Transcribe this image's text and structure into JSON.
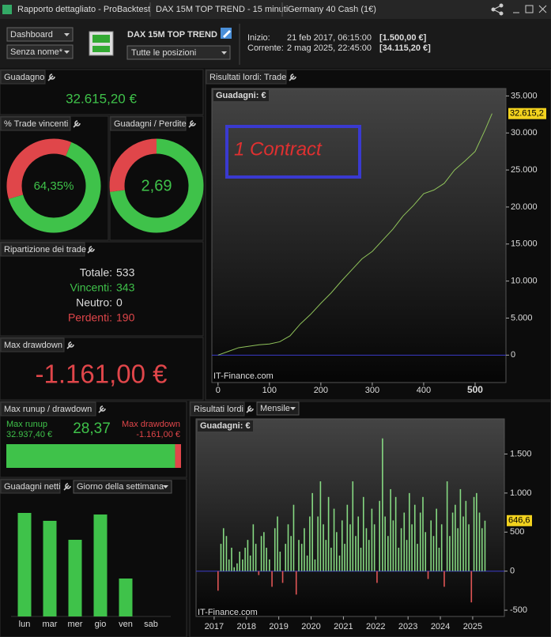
{
  "window": {
    "title": "Rapporto dettagliato - ProBacktest",
    "tabs": [
      "DAX 15M TOP TREND - 15 minuti",
      "Germany 40 Cash (1€)"
    ]
  },
  "toolbar": {
    "view": "Dashboard",
    "name": "Senza nome*",
    "strategy": "DAX 15M TOP TREND",
    "positions": "Tutte le posizioni",
    "start_label": "Inizio:",
    "start_date": "21 feb 2017, 06:15:00",
    "start_capital": "[1.500,00 €]",
    "current_label": "Corrente:",
    "current_date": "2 mag 2025, 22:45:00",
    "current_capital": "[34.115,20 €]"
  },
  "gain": {
    "title": "Guadagno",
    "value": "32.615,20 €"
  },
  "win_rate": {
    "title": "% Trade vincenti",
    "value": 64.35,
    "value_label": "64,35%"
  },
  "gain_loss": {
    "title": "Guadagni / Perdite",
    "value": 2.69,
    "value_label": "2,69"
  },
  "breakdown": {
    "title": "Ripartizione dei trade",
    "rows": [
      [
        "Totale:",
        533
      ],
      [
        "Vincenti:",
        343
      ],
      [
        "Neutro:",
        0
      ],
      [
        "Perdenti:",
        190
      ]
    ]
  },
  "max_drawdown": {
    "title": "Max drawdown",
    "value": "-1.161,00 €"
  },
  "runup": {
    "title": "Max runup / drawdown",
    "runup_label": "Max runup",
    "runup": 32937.4,
    "runup_value_label": "32.937,40 €",
    "ratio": 28.37,
    "ratio_label": "28,37",
    "drawdown_label": "Max drawdown",
    "drawdown": -1161,
    "drawdown_value_label": "-1.161,00 €"
  },
  "chart_data": [
    {
      "type": "line",
      "panel_title": "Risultati lordi: Trade",
      "title": "Guadagni: €",
      "annotation": "1 Contract",
      "watermark": "IT-Finance.com",
      "x": [
        0,
        20,
        40,
        60,
        80,
        100,
        120,
        140,
        160,
        180,
        200,
        220,
        240,
        260,
        280,
        300,
        320,
        340,
        360,
        380,
        400,
        420,
        440,
        460,
        480,
        500,
        520,
        533
      ],
      "values": [
        0,
        500,
        1000,
        1200,
        1400,
        1500,
        1800,
        2600,
        4200,
        5500,
        7000,
        8400,
        10000,
        11500,
        13000,
        14000,
        15500,
        17000,
        18800,
        20200,
        21800,
        22300,
        23200,
        25000,
        26200,
        27500,
        30500,
        32615.2
      ],
      "last_value_label": "32.615,2",
      "color": "#8fc25a",
      "xlim": [
        -12,
        560
      ],
      "ylim": [
        -3700,
        36000
      ],
      "xticks": [
        0,
        100,
        200,
        300,
        400,
        500
      ],
      "yticks": [
        0,
        {
          "value": 5000,
          "label": "5.000"
        },
        {
          "value": 10000,
          "label": "10.000"
        },
        {
          "value": 15000,
          "label": "15.000"
        },
        {
          "value": 20000,
          "label": "20.000"
        },
        {
          "value": 25000,
          "label": "25.000"
        },
        {
          "value": 30000,
          "label": "30.000"
        },
        {
          "value": 35000,
          "label": "35.000"
        }
      ]
    },
    {
      "type": "bar",
      "panel_title": "Guadagni netti",
      "selector": "Giorno della settimana",
      "categories": [
        "lun",
        "mar",
        "mer",
        "gio",
        "ven",
        "sab"
      ],
      "values": [
        131,
        121,
        97,
        129,
        48,
        0
      ],
      "color": "#3fc24a",
      "ylim": [
        0,
        140
      ]
    },
    {
      "type": "bar",
      "panel_title": "Risultati lordi",
      "selector": "Mensile",
      "title": "Guadagni: €",
      "watermark": "IT-Finance.com",
      "x": [
        2017.12,
        2017.21,
        2017.29,
        2017.38,
        2017.46,
        2017.54,
        2017.62,
        2017.71,
        2017.79,
        2017.88,
        2017.96,
        2018.04,
        2018.12,
        2018.21,
        2018.29,
        2018.38,
        2018.46,
        2018.54,
        2018.62,
        2018.71,
        2018.79,
        2018.88,
        2018.96,
        2019.04,
        2019.12,
        2019.21,
        2019.29,
        2019.38,
        2019.46,
        2019.54,
        2019.62,
        2019.71,
        2019.79,
        2019.88,
        2019.96,
        2020.04,
        2020.12,
        2020.21,
        2020.29,
        2020.38,
        2020.46,
        2020.54,
        2020.62,
        2020.71,
        2020.79,
        2020.88,
        2020.96,
        2021.04,
        2021.12,
        2021.21,
        2021.29,
        2021.38,
        2021.46,
        2021.54,
        2021.62,
        2021.71,
        2021.79,
        2021.88,
        2021.96,
        2022.04,
        2022.12,
        2022.21,
        2022.29,
        2022.38,
        2022.46,
        2022.54,
        2022.62,
        2022.71,
        2022.79,
        2022.88,
        2022.96,
        2023.04,
        2023.12,
        2023.21,
        2023.29,
        2023.38,
        2023.46,
        2023.54,
        2023.62,
        2023.71,
        2023.79,
        2023.88,
        2023.96,
        2024.04,
        2024.12,
        2024.21,
        2024.29,
        2024.38,
        2024.46,
        2024.54,
        2024.62,
        2024.71,
        2024.79,
        2024.88,
        2024.96,
        2025.04,
        2025.12,
        2025.21,
        2025.29,
        2025.38
      ],
      "values": [
        -250,
        350,
        550,
        450,
        150,
        300,
        50,
        100,
        250,
        150,
        300,
        400,
        200,
        600,
        350,
        -50,
        450,
        500,
        300,
        150,
        -200,
        550,
        700,
        250,
        -150,
        350,
        600,
        450,
        850,
        -300,
        400,
        350,
        550,
        200,
        700,
        1000,
        150,
        700,
        1150,
        600,
        400,
        950,
        300,
        800,
        500,
        200,
        650,
        350,
        850,
        600,
        1150,
        450,
        700,
        300,
        950,
        550,
        400,
        800,
        600,
        -150,
        900,
        1700,
        700,
        450,
        1050,
        650,
        950,
        300,
        550,
        750,
        400,
        1000,
        600,
        850,
        350,
        750,
        950,
        500,
        -100,
        650,
        450,
        800,
        300,
        600,
        -200,
        1150,
        450,
        750,
        850,
        550,
        1050,
        700,
        900,
        600,
        -400,
        950,
        1000,
        750,
        550,
        646.6
      ],
      "last_value_label": "646,6",
      "color": "#86d982",
      "negative_color": "#e05555",
      "xlim": [
        2016.44,
        2025.98
      ],
      "ylim": [
        -580,
        1950
      ],
      "xticks": [
        2017,
        2018,
        2019,
        2020,
        2021,
        2022,
        2023,
        2024,
        2025
      ],
      "yticks": [
        -500,
        0,
        500,
        {
          "value": 1000,
          "label": "1.000"
        },
        {
          "value": 1500,
          "label": "1.500"
        }
      ]
    }
  ]
}
